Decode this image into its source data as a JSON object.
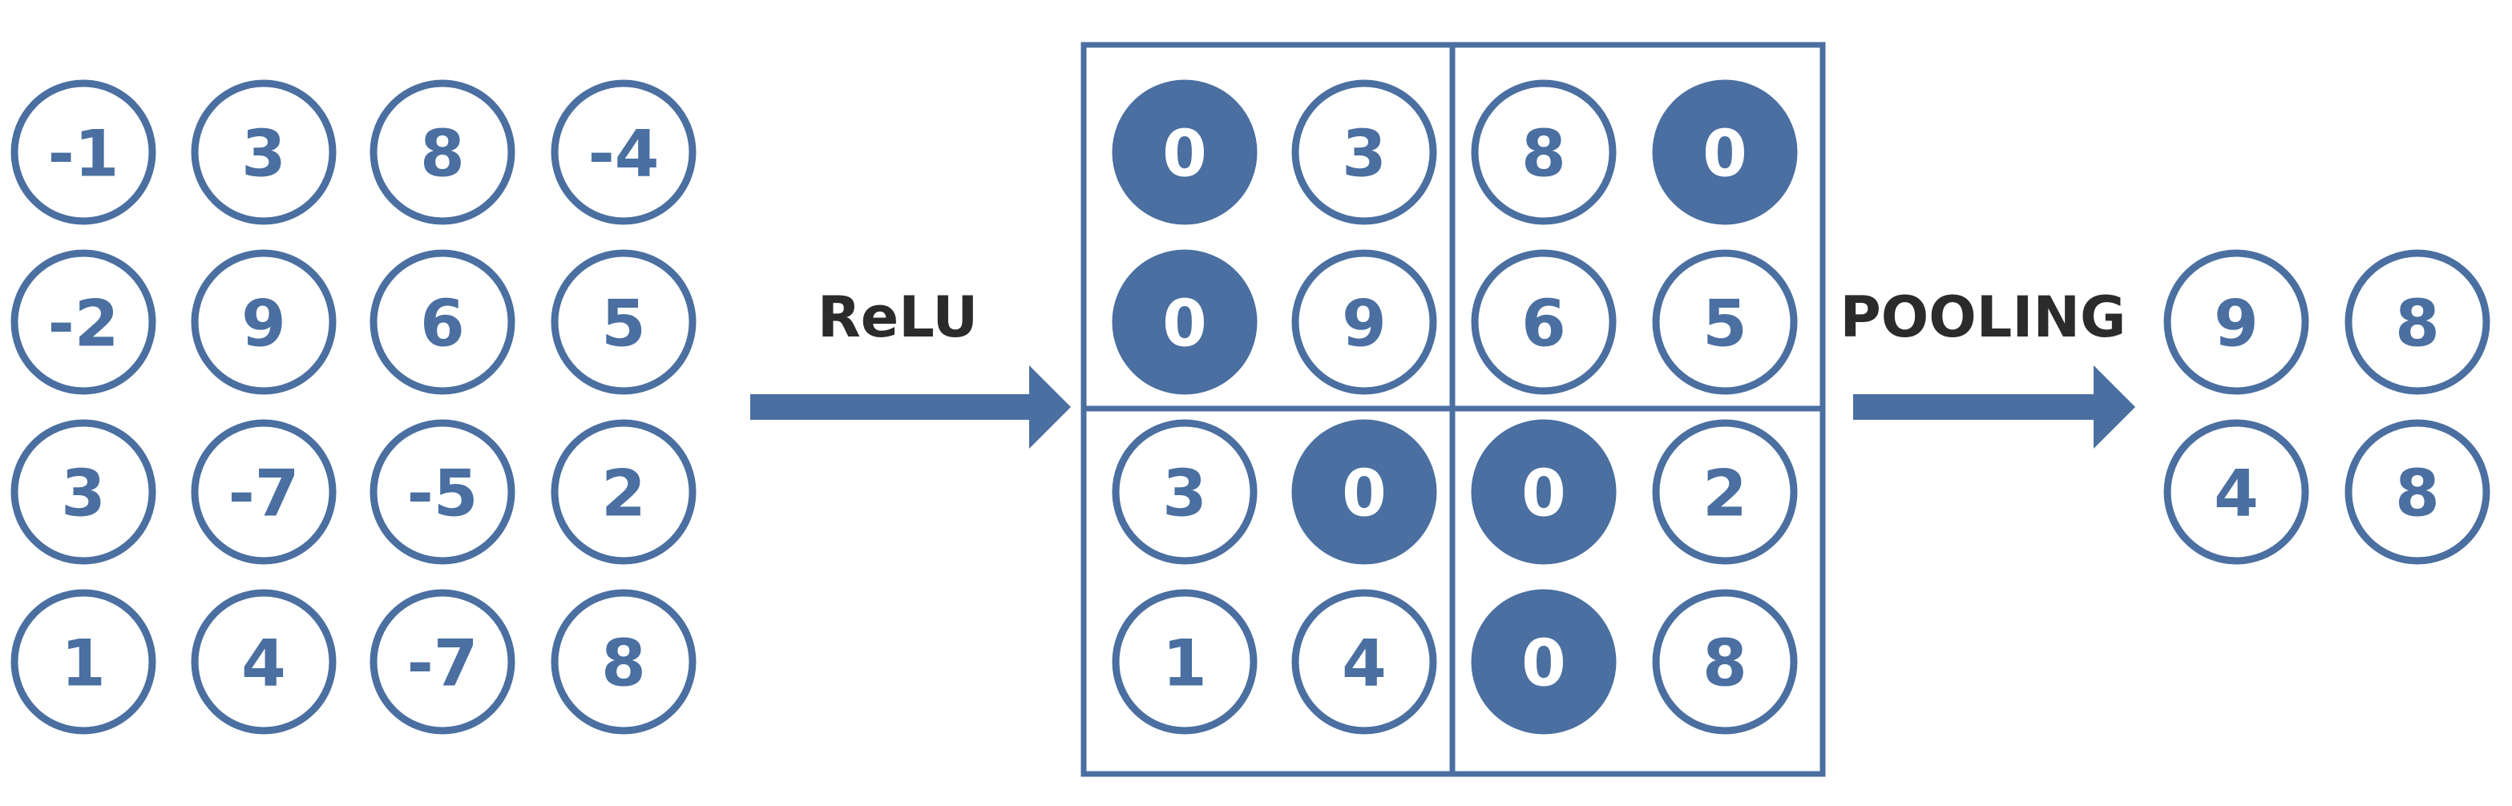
{
  "colors": {
    "accent": "#4a6fa0",
    "label": "#2c2b2b",
    "background": "#ffffff"
  },
  "input_matrix": [
    [
      "-1",
      "3",
      "8",
      "-4"
    ],
    [
      "-2",
      "9",
      "6",
      "5"
    ],
    [
      "3",
      "-7",
      "-5",
      "2"
    ],
    [
      "1",
      "4",
      "-7",
      "8"
    ]
  ],
  "relu_label": "ReLU",
  "relu_matrix": [
    [
      "0",
      "3",
      "8",
      "0"
    ],
    [
      "0",
      "9",
      "6",
      "5"
    ],
    [
      "3",
      "0",
      "0",
      "2"
    ],
    [
      "1",
      "4",
      "0",
      "8"
    ]
  ],
  "pooling_label": "POOLING",
  "pooled_matrix": [
    [
      "9",
      "8"
    ],
    [
      "4",
      "8"
    ]
  ]
}
